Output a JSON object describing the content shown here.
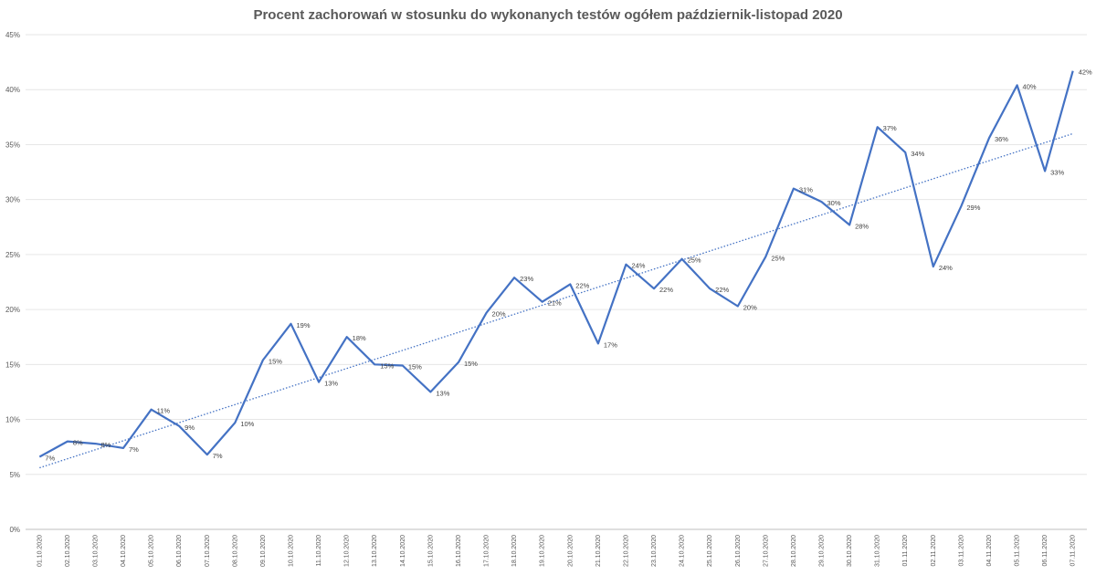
{
  "chart_data": {
    "type": "line",
    "title": "Procent zachorowań w stosunku do wykonanych testów ogółem październik-listopad 2020",
    "xlabel": "",
    "ylabel": "",
    "ylim": [
      0,
      45
    ],
    "y_tick_step": 5,
    "y_tick_labels": [
      "0%",
      "5%",
      "10%",
      "15%",
      "20%",
      "25%",
      "30%",
      "35%",
      "40%",
      "45%"
    ],
    "grid": true,
    "legend": "none",
    "categories": [
      "01.10.2020",
      "02.10.2020",
      "03.10.2020",
      "04.10.2020",
      "05.10.2020",
      "06.10.2020",
      "07.10.2020",
      "08.10.2020",
      "09.10.2020",
      "10.10.2020",
      "11.10.2020",
      "12.10.2020",
      "13.10.2020",
      "14.10.2020",
      "15.10.2020",
      "16.10.2020",
      "17.10.2020",
      "18.10.2020",
      "19.10.2020",
      "20.10.2020",
      "21.10.2020",
      "22.10.2020",
      "23.10.2020",
      "24.10.2020",
      "25.10.2020",
      "26.10.2020",
      "27.10.2020",
      "28.10.2020",
      "29.10.2020",
      "30.10.2020",
      "31.10.2020",
      "01.11.2020",
      "02.11.2020",
      "03.11.2020",
      "04.11.2020",
      "05.11.2020",
      "06.11.2020",
      "07.11.2020"
    ],
    "series": [
      {
        "values": [
          6.6,
          8.0,
          7.8,
          7.4,
          10.9,
          9.4,
          6.8,
          9.7,
          15.4,
          18.7,
          13.4,
          17.5,
          15.0,
          14.9,
          12.5,
          15.2,
          19.7,
          22.9,
          20.7,
          22.3,
          16.9,
          24.1,
          21.9,
          24.6,
          21.9,
          20.3,
          24.8,
          31.0,
          29.8,
          27.7,
          36.6,
          34.3,
          23.9,
          29.4,
          35.6,
          40.4,
          32.6,
          41.7
        ],
        "data_labels": [
          "7%",
          "8%",
          "8%",
          "7%",
          "11%",
          "9%",
          "7%",
          "10%",
          "15%",
          "19%",
          "13%",
          "18%",
          "15%",
          "15%",
          "13%",
          "15%",
          "20%",
          "23%",
          "21%",
          "22%",
          "17%",
          "24%",
          "22%",
          "25%",
          "22%",
          "20%",
          "25%",
          "31%",
          "30%",
          "28%",
          "37%",
          "34%",
          "24%",
          "29%",
          "36%",
          "40%",
          "33%",
          "42%"
        ],
        "color": "#4472C4"
      }
    ],
    "trendline": {
      "type": "linear",
      "color": "#4472C4",
      "style": "dotted",
      "start": 5.6,
      "end": 36.0
    }
  }
}
